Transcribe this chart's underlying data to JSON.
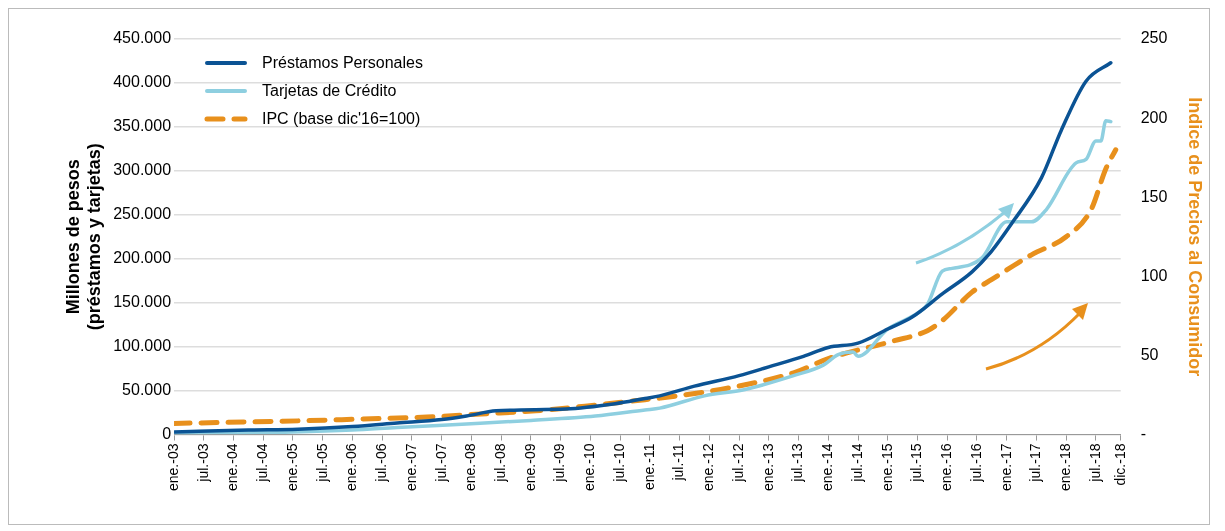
{
  "chart_data": {
    "type": "line",
    "ylabel": "Millones de pesos\n(préstamos y tarjetas)",
    "y2label": "Indice de Precios al Consumidor",
    "xlim": [
      "2003-01",
      "2018-12"
    ],
    "xticks": [
      {
        "value": "2003-01",
        "label": "ene.-03"
      },
      {
        "value": "2003-07",
        "label": "jul.-03"
      },
      {
        "value": "2004-01",
        "label": "ene.-04"
      },
      {
        "value": "2004-07",
        "label": "jul.-04"
      },
      {
        "value": "2005-01",
        "label": "ene.-05"
      },
      {
        "value": "2005-07",
        "label": "jul.-05"
      },
      {
        "value": "2006-01",
        "label": "ene.-06"
      },
      {
        "value": "2006-07",
        "label": "jul.-06"
      },
      {
        "value": "2007-01",
        "label": "ene.-07"
      },
      {
        "value": "2007-07",
        "label": "jul.-07"
      },
      {
        "value": "2008-01",
        "label": "ene.-08"
      },
      {
        "value": "2008-07",
        "label": "jul.-08"
      },
      {
        "value": "2009-01",
        "label": "ene.-09"
      },
      {
        "value": "2009-07",
        "label": "jul.-09"
      },
      {
        "value": "2010-01",
        "label": "ene.-10"
      },
      {
        "value": "2010-07",
        "label": "jul.-10"
      },
      {
        "value": "2011-01",
        "label": "ene.-11"
      },
      {
        "value": "2011-07",
        "label": "jul.-11"
      },
      {
        "value": "2012-01",
        "label": "ene.-12"
      },
      {
        "value": "2012-07",
        "label": "jul.-12"
      },
      {
        "value": "2013-01",
        "label": "ene.-13"
      },
      {
        "value": "2013-07",
        "label": "jul.-13"
      },
      {
        "value": "2014-01",
        "label": "ene.-14"
      },
      {
        "value": "2014-07",
        "label": "jul.-14"
      },
      {
        "value": "2015-01",
        "label": "ene.-15"
      },
      {
        "value": "2015-07",
        "label": "jul.-15"
      },
      {
        "value": "2016-01",
        "label": "ene.-16"
      },
      {
        "value": "2016-07",
        "label": "jul.-16"
      },
      {
        "value": "2017-01",
        "label": "ene.-17"
      },
      {
        "value": "2017-07",
        "label": "jul.-17"
      },
      {
        "value": "2018-01",
        "label": "ene.-18"
      },
      {
        "value": "2018-07",
        "label": "jul.-18"
      },
      {
        "value": "2018-12",
        "label": "dic.-18"
      }
    ],
    "ylim": [
      0,
      450000
    ],
    "yticks": [
      0,
      {
        "value": 50000,
        "label": "50.000"
      },
      {
        "value": 100000,
        "label": "100.000"
      },
      {
        "value": 150000,
        "label": "150.000"
      },
      {
        "value": 200000,
        "label": "200.000"
      },
      {
        "value": 250000,
        "label": "250.000"
      },
      {
        "value": 300000,
        "label": "300.000"
      },
      {
        "value": 350000,
        "label": "350.000"
      },
      {
        "value": 400000,
        "label": "400.000"
      },
      {
        "value": 450000,
        "label": "450.000"
      }
    ],
    "y2lim": [
      0,
      250
    ],
    "y2ticks": [
      {
        "value": 0,
        "label": "-"
      },
      50,
      100,
      150,
      200,
      250
    ],
    "grid": "y",
    "legend": "top left",
    "marker": "none",
    "series": [
      {
        "name": "Préstamos Personales",
        "color": "#0b5394",
        "line_style": "solid",
        "x": [
          "2003-01",
          "2004-04",
          "2005-02",
          "2006-01",
          "2006-10",
          "2007-07",
          "2007-12",
          "2008-06",
          "2009-08",
          "2010-06",
          "2010-12",
          "2011-03",
          "2011-10",
          "2012-07",
          "2013-01",
          "2013-08",
          "2014-01",
          "2014-07",
          "2015-01",
          "2015-06",
          "2015-12",
          "2016-06",
          "2016-10",
          "2017-02",
          "2017-08",
          "2017-12",
          "2018-05",
          "2018-10"
        ],
        "values": [
          3000,
          5000,
          6000,
          9000,
          13000,
          17000,
          21000,
          27000,
          29000,
          35000,
          41000,
          44000,
          55000,
          67000,
          77000,
          89000,
          99000,
          104000,
          120000,
          134000,
          160000,
          185000,
          209000,
          240000,
          292000,
          346000,
          402000,
          423000
        ]
      },
      {
        "name": "Tarjetas de Crédito",
        "color": "#8ecfe0",
        "line_style": "solid",
        "x": [
          "2003-01",
          "2005-01",
          "2006-01",
          "2006-10",
          "2007-12",
          "2009-01",
          "2010-02",
          "2010-12",
          "2011-03",
          "2011-12",
          "2012-08",
          "2013-06",
          "2013-12",
          "2014-03",
          "2014-06",
          "2014-07",
          "2015-01",
          "2015-07",
          "2015-09",
          "2015-12",
          "2016-02",
          "2016-08",
          "2017-01",
          "2017-06",
          "2017-09",
          "2018-03",
          "2018-05",
          "2018-07",
          "2018-08",
          "2018-09",
          "2018-10"
        ],
        "values": [
          2000,
          3000,
          5000,
          8000,
          12000,
          16000,
          21000,
          28000,
          30000,
          44000,
          51000,
          67000,
          79000,
          91000,
          94000,
          89000,
          120000,
          138000,
          148000,
          186000,
          189000,
          201000,
          242000,
          242000,
          256000,
          309000,
          313000,
          334000,
          334000,
          357000,
          356000
        ]
      },
      {
        "name": "IPC (base dic'16=100)",
        "color": "#e8901c",
        "line_style": "dashed",
        "axis": "y2",
        "x": [
          "2003-01",
          "2005-03",
          "2006-03",
          "2007-04",
          "2008-03",
          "2009-02",
          "2010-02",
          "2010-12",
          "2011-03",
          "2012-05",
          "2013-06",
          "2014-01",
          "2015-02",
          "2015-09",
          "2015-12",
          "2016-06",
          "2016-10",
          "2017-06",
          "2018-01",
          "2018-06",
          "2018-09",
          "2018-11"
        ],
        "values": [
          7,
          8.7,
          9.8,
          11,
          13,
          15,
          18.6,
          22,
          23,
          29.5,
          39,
          48,
          59,
          65.6,
          72,
          90,
          98,
          113.6,
          125,
          142,
          168,
          180
        ]
      }
    ]
  }
}
